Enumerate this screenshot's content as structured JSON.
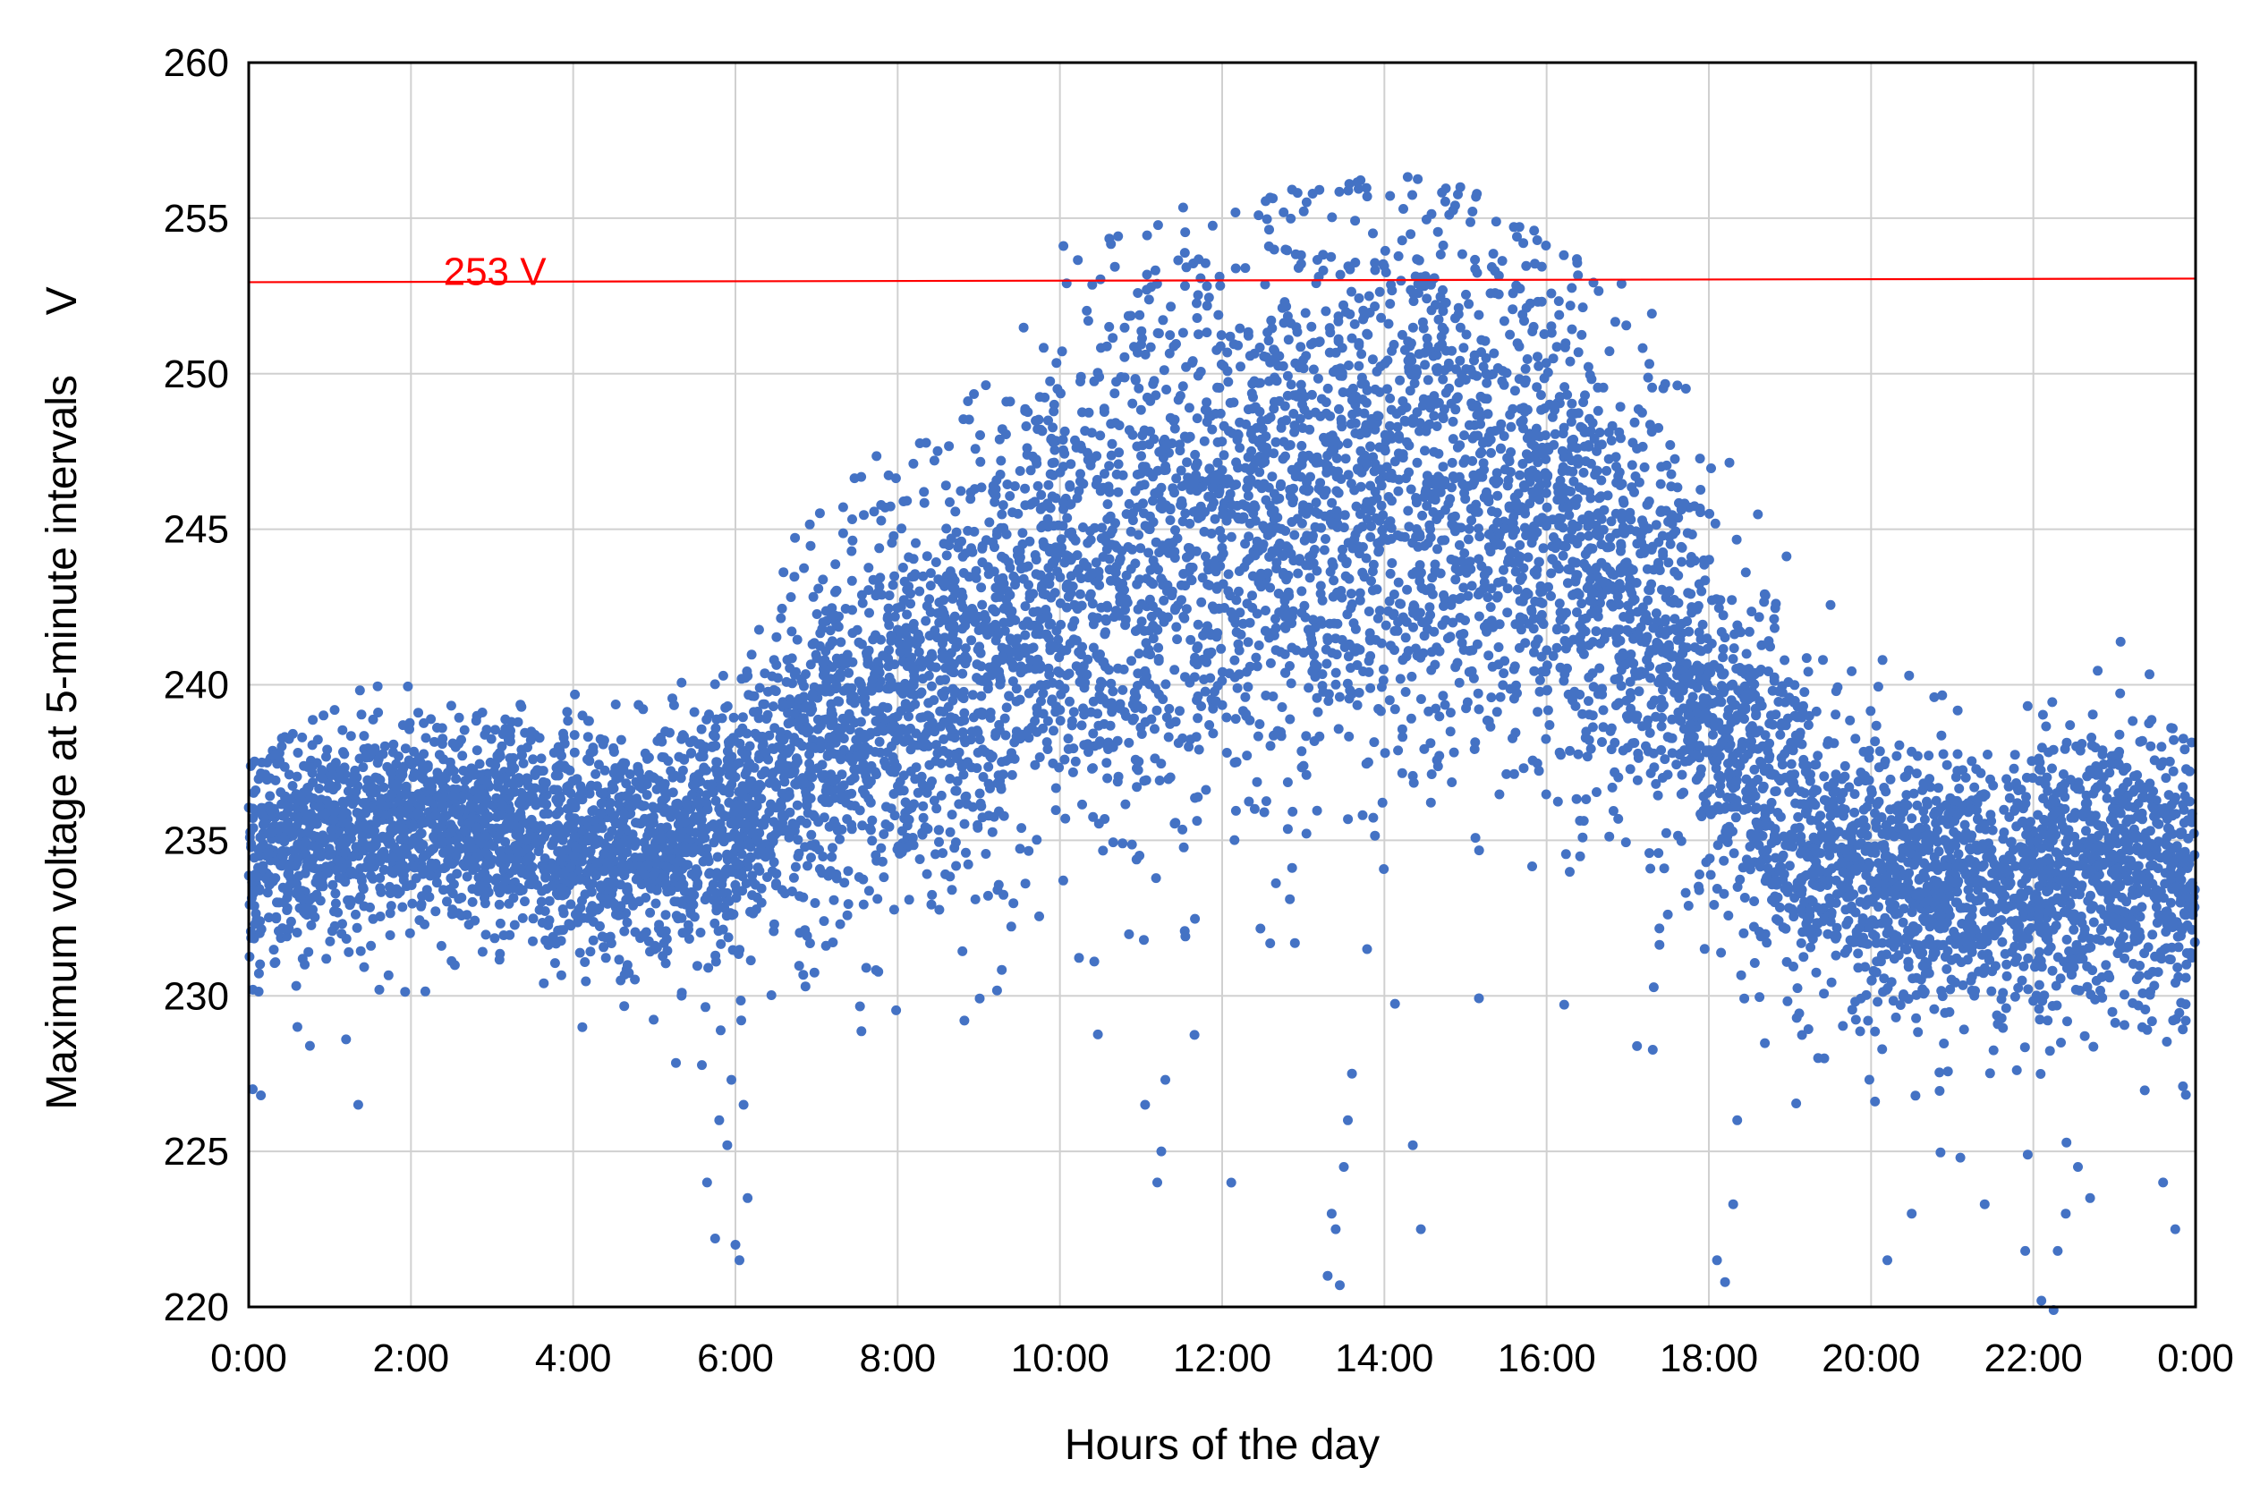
{
  "chart_data": {
    "type": "scatter",
    "title": "",
    "xlabel": "Hours of the day",
    "ylabel": "Maximum voltage at 5-minute intervals     V",
    "x_tick_labels": [
      "0:00",
      "2:00",
      "4:00",
      "6:00",
      "8:00",
      "10:00",
      "12:00",
      "14:00",
      "16:00",
      "18:00",
      "20:00",
      "22:00",
      "0:00"
    ],
    "xlim": [
      0,
      24
    ],
    "ylim": [
      220,
      260
    ],
    "y_ticks": [
      220,
      225,
      230,
      235,
      240,
      245,
      250,
      255,
      260
    ],
    "grid": true,
    "legend": "none",
    "colors": {
      "points": "#4472C4",
      "reference": "#FF0000",
      "grid": "#D0D0D0"
    },
    "reference_line": {
      "label": "253 V",
      "value": 253
    },
    "series": [
      {
        "marker": "circle",
        "envelope": [
          {
            "hour": 0,
            "median": 234.5,
            "spread": 1.8,
            "max": 237.5
          },
          {
            "hour": 1,
            "median": 235.2,
            "spread": 1.4,
            "max": 239.5
          },
          {
            "hour": 2,
            "median": 235.5,
            "spread": 1.4,
            "max": 241.0
          },
          {
            "hour": 3,
            "median": 235.3,
            "spread": 1.5,
            "max": 239.0
          },
          {
            "hour": 4,
            "median": 235.0,
            "spread": 1.7,
            "max": 240.5
          },
          {
            "hour": 5,
            "median": 234.8,
            "spread": 1.8,
            "max": 240.0
          },
          {
            "hour": 6,
            "median": 235.2,
            "spread": 1.8,
            "max": 240.5
          },
          {
            "hour": 7,
            "median": 238.5,
            "spread": 2.8,
            "max": 246.5
          },
          {
            "hour": 8,
            "median": 239.5,
            "spread": 3.0,
            "max": 248.0
          },
          {
            "hour": 9,
            "median": 240.5,
            "spread": 3.2,
            "max": 249.5
          },
          {
            "hour": 10,
            "median": 242.5,
            "spread": 3.8,
            "max": 254.5
          },
          {
            "hour": 11,
            "median": 244.0,
            "spread": 4.2,
            "max": 255.5
          },
          {
            "hour": 12,
            "median": 245.5,
            "spread": 4.3,
            "max": 255.5
          },
          {
            "hour": 13,
            "median": 246.0,
            "spread": 4.4,
            "max": 256.0
          },
          {
            "hour": 14,
            "median": 246.5,
            "spread": 4.3,
            "max": 256.5
          },
          {
            "hour": 15,
            "median": 246.5,
            "spread": 4.0,
            "max": 256.0
          },
          {
            "hour": 16,
            "median": 245.5,
            "spread": 3.8,
            "max": 254.5
          },
          {
            "hour": 17,
            "median": 243.0,
            "spread": 3.5,
            "max": 253.0
          },
          {
            "hour": 18,
            "median": 239.0,
            "spread": 3.0,
            "max": 249.5
          },
          {
            "hour": 19,
            "median": 235.5,
            "spread": 2.5,
            "max": 244.0
          },
          {
            "hour": 20,
            "median": 233.8,
            "spread": 2.1,
            "max": 241.5
          },
          {
            "hour": 21,
            "median": 233.5,
            "spread": 2.0,
            "max": 241.5
          },
          {
            "hour": 22,
            "median": 233.6,
            "spread": 2.0,
            "max": 240.0
          },
          {
            "hour": 23,
            "median": 234.5,
            "spread": 2.2,
            "max": 242.5
          },
          {
            "hour": 24,
            "median": 233.5,
            "spread": 1.9,
            "max": 238.0
          }
        ],
        "outliers": [
          [
            0.05,
            227.0
          ],
          [
            0.15,
            226.8
          ],
          [
            0.6,
            229.0
          ],
          [
            1.35,
            226.5
          ],
          [
            1.2,
            228.6
          ],
          [
            5.65,
            224.0
          ],
          [
            5.75,
            222.2
          ],
          [
            5.8,
            226.0
          ],
          [
            5.95,
            227.3
          ],
          [
            6.05,
            221.5
          ],
          [
            6.0,
            222.0
          ],
          [
            6.1,
            226.5
          ],
          [
            6.15,
            223.5
          ],
          [
            5.9,
            225.2
          ],
          [
            11.05,
            226.5
          ],
          [
            11.2,
            224.0
          ],
          [
            11.3,
            227.3
          ],
          [
            11.25,
            225.0
          ],
          [
            13.3,
            221.0
          ],
          [
            13.35,
            223.0
          ],
          [
            13.45,
            220.7
          ],
          [
            13.5,
            224.5
          ],
          [
            13.55,
            226.0
          ],
          [
            13.4,
            222.5
          ],
          [
            13.6,
            227.5
          ],
          [
            14.45,
            222.5
          ],
          [
            14.35,
            225.2
          ],
          [
            18.1,
            221.5
          ],
          [
            18.2,
            220.8
          ],
          [
            18.3,
            223.3
          ],
          [
            18.35,
            226.0
          ],
          [
            20.2,
            221.5
          ],
          [
            20.5,
            223.0
          ],
          [
            21.4,
            223.3
          ],
          [
            21.1,
            224.8
          ],
          [
            21.9,
            221.8
          ],
          [
            22.1,
            220.2
          ],
          [
            22.25,
            219.9
          ],
          [
            22.3,
            221.8
          ],
          [
            22.4,
            223.0
          ],
          [
            22.55,
            224.5
          ],
          [
            22.7,
            223.5
          ],
          [
            23.6,
            224.0
          ],
          [
            23.75,
            222.5
          ]
        ]
      }
    ]
  }
}
